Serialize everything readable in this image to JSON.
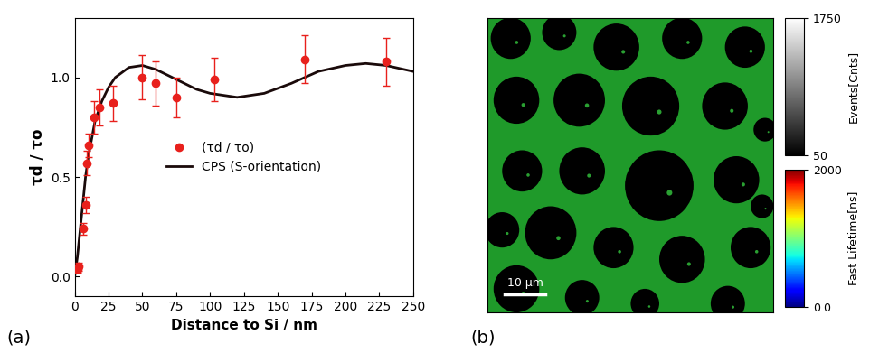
{
  "chart_data": [
    {
      "type": "scatter_line",
      "panel_label": "(a)",
      "x_label": "Distance to Si / nm",
      "y_label": "τd / τo",
      "xlim": [
        0,
        250
      ],
      "xticks": [
        0,
        25,
        50,
        75,
        100,
        125,
        150,
        175,
        200,
        225,
        250
      ],
      "ylim": [
        -0.1,
        1.3
      ],
      "yticks": [
        {
          "value": 0,
          "label": "0.0"
        },
        {
          "value": 0.5,
          "label": "0.5"
        },
        {
          "value": 1,
          "label": "1.0"
        }
      ],
      "legend": "center",
      "series": [
        {
          "name": "(τd / τo)",
          "type": "scatter",
          "color": "#e8201c",
          "marker": "o",
          "x": [
            2,
            3,
            6,
            8,
            9,
            10,
            14,
            18,
            28,
            50,
            60,
            75,
            103,
            170,
            230
          ],
          "values": [
            0.04,
            0.05,
            0.24,
            0.36,
            0.57,
            0.66,
            0.8,
            0.85,
            0.87,
            1.0,
            0.97,
            0.9,
            0.99,
            1.09,
            1.08
          ],
          "errors": [
            0.02,
            0.02,
            0.03,
            0.04,
            0.06,
            0.06,
            0.08,
            0.09,
            0.09,
            0.11,
            0.11,
            0.1,
            0.11,
            0.12,
            0.12
          ]
        },
        {
          "name": "CPS (S-orientation)",
          "type": "line",
          "color": "#1a0a0a",
          "line_style": "solid",
          "x": [
            0,
            2,
            5,
            8,
            10,
            15,
            20,
            25,
            30,
            40,
            50,
            60,
            75,
            90,
            100,
            120,
            140,
            160,
            180,
            200,
            215,
            230,
            250
          ],
          "values": [
            0.0,
            0.1,
            0.3,
            0.5,
            0.6,
            0.78,
            0.88,
            0.95,
            1.0,
            1.05,
            1.06,
            1.04,
            0.99,
            0.94,
            0.92,
            0.9,
            0.92,
            0.97,
            1.03,
            1.06,
            1.07,
            1.06,
            1.03
          ]
        }
      ]
    },
    {
      "type": "image",
      "panel_label": "(b)",
      "scale_bar": "10 μm",
      "colorbars": [
        {
          "label": "Events[Cnts]",
          "range": [
            50,
            1750
          ],
          "ticks": [
            50,
            1750
          ],
          "color": "gray"
        },
        {
          "label": "Fast Lifetime[ns]",
          "range": [
            0,
            2000
          ],
          "ticks": [
            {
              "value": 0,
              "label": "0.0"
            },
            2000
          ],
          "color": "jet"
        }
      ]
    }
  ]
}
